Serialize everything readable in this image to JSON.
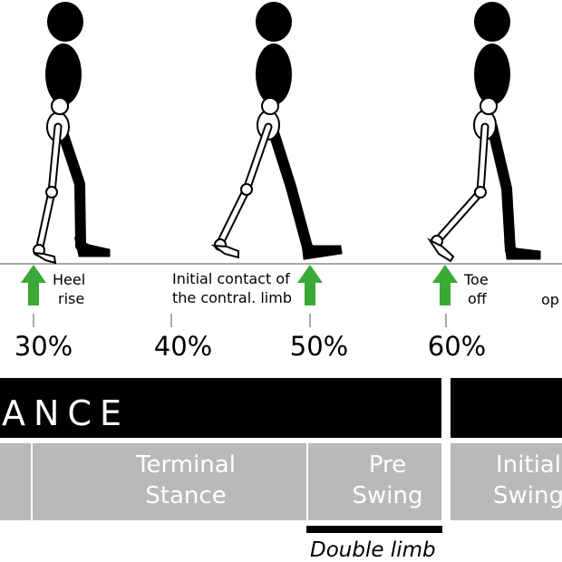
{
  "events": [
    {
      "line1": "Heel",
      "line2": "rise"
    },
    {
      "line1": "Initial contact of",
      "line2": "the contral. limb"
    },
    {
      "line1": "Toe",
      "line2": "off"
    },
    {
      "line1": "op",
      "line2": ""
    }
  ],
  "percent_ticks": [
    "30%",
    "40%",
    "50%",
    "60%"
  ],
  "phase_band": {
    "label": "ANCE"
  },
  "phases": [
    {
      "line1": "Terminal",
      "line2": "Stance"
    },
    {
      "line1": "Pre",
      "line2": "Swing"
    },
    {
      "line1": "Initial",
      "line2": "Swing"
    }
  ],
  "double_limb": {
    "label": "Double limb"
  },
  "colors": {
    "arrow": "#3aa935",
    "band": "#000000",
    "phase_box": "#b9b9b9",
    "ground": "#aaaaaa"
  }
}
